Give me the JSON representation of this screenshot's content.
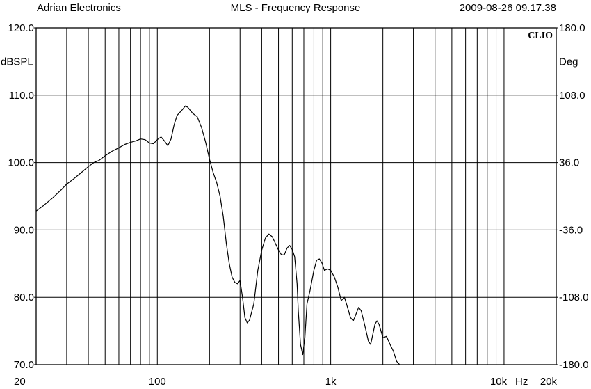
{
  "header": {
    "left": "Adrian Electronics",
    "center": "MLS - Frequency Response",
    "right": "2009-08-26 09.17.38"
  },
  "brand": "CLIO",
  "chart_data": {
    "type": "line",
    "title": "MLS - Frequency Response",
    "xscale": "log",
    "xlim": [
      20,
      20000
    ],
    "ylim": [
      70,
      120
    ],
    "y2lim": [
      -180,
      180
    ],
    "ylabel": "dBSPL",
    "y2label": "Deg",
    "xunit": "Hz",
    "grid": true,
    "xticks": [
      {
        "value": 20,
        "label": "20"
      },
      {
        "value": 100,
        "label": "100"
      },
      {
        "value": 1000,
        "label": "1k"
      },
      {
        "value": 10000,
        "label": "10k"
      },
      {
        "value": 20000,
        "label": "20k"
      }
    ],
    "yticks": [
      {
        "value": 120,
        "label": "120.0"
      },
      {
        "value": 110,
        "label": "110.0"
      },
      {
        "value": 100,
        "label": "100.0"
      },
      {
        "value": 90,
        "label": "90.0"
      },
      {
        "value": 80,
        "label": "80.0"
      },
      {
        "value": 70,
        "label": "70.0"
      }
    ],
    "y2ticks": [
      {
        "value": 180,
        "label": "180.0"
      },
      {
        "value": 108,
        "label": "108.0"
      },
      {
        "value": 36,
        "label": "36.0"
      },
      {
        "value": -36,
        "label": "-36.0"
      },
      {
        "value": -108,
        "label": "-108.0"
      },
      {
        "value": -180,
        "label": "-180.0"
      }
    ],
    "series": [
      {
        "points": [
          [
            20,
            92.8
          ],
          [
            22,
            93.6
          ],
          [
            25,
            94.8
          ],
          [
            28,
            96.0
          ],
          [
            30,
            96.8
          ],
          [
            33,
            97.6
          ],
          [
            36,
            98.4
          ],
          [
            40,
            99.4
          ],
          [
            43,
            100.0
          ],
          [
            46,
            100.3
          ],
          [
            50,
            101.0
          ],
          [
            55,
            101.7
          ],
          [
            60,
            102.2
          ],
          [
            65,
            102.7
          ],
          [
            70,
            103.0
          ],
          [
            75,
            103.2
          ],
          [
            80,
            103.5
          ],
          [
            85,
            103.4
          ],
          [
            90,
            102.9
          ],
          [
            95,
            102.8
          ],
          [
            100,
            103.4
          ],
          [
            105,
            103.8
          ],
          [
            110,
            103.2
          ],
          [
            115,
            102.5
          ],
          [
            120,
            103.5
          ],
          [
            125,
            105.6
          ],
          [
            130,
            107.0
          ],
          [
            140,
            107.9
          ],
          [
            145,
            108.4
          ],
          [
            150,
            108.2
          ],
          [
            160,
            107.3
          ],
          [
            170,
            106.8
          ],
          [
            180,
            105.2
          ],
          [
            190,
            103.0
          ],
          [
            200,
            100.5
          ],
          [
            210,
            98.5
          ],
          [
            220,
            97.0
          ],
          [
            230,
            95.0
          ],
          [
            240,
            92.0
          ],
          [
            250,
            88.0
          ],
          [
            260,
            85.0
          ],
          [
            270,
            83.0
          ],
          [
            280,
            82.2
          ],
          [
            290,
            82.0
          ],
          [
            300,
            82.5
          ],
          [
            310,
            80.0
          ],
          [
            320,
            77.0
          ],
          [
            330,
            76.2
          ],
          [
            340,
            76.6
          ],
          [
            360,
            79.0
          ],
          [
            380,
            84.0
          ],
          [
            400,
            87.0
          ],
          [
            420,
            88.8
          ],
          [
            440,
            89.4
          ],
          [
            460,
            89.0
          ],
          [
            480,
            88.0
          ],
          [
            500,
            87.0
          ],
          [
            520,
            86.3
          ],
          [
            540,
            86.3
          ],
          [
            560,
            87.3
          ],
          [
            580,
            87.7
          ],
          [
            600,
            87.1
          ],
          [
            620,
            86.0
          ],
          [
            640,
            82.0
          ],
          [
            650,
            78.0
          ],
          [
            670,
            73.0
          ],
          [
            690,
            71.5
          ],
          [
            710,
            74.0
          ],
          [
            730,
            79.0
          ],
          [
            760,
            81.0
          ],
          [
            800,
            84.0
          ],
          [
            830,
            85.5
          ],
          [
            860,
            85.7
          ],
          [
            890,
            85.1
          ],
          [
            920,
            84.0
          ],
          [
            960,
            84.2
          ],
          [
            1000,
            84.0
          ],
          [
            1050,
            83.0
          ],
          [
            1100,
            81.5
          ],
          [
            1150,
            79.5
          ],
          [
            1200,
            80.0
          ],
          [
            1250,
            78.5
          ],
          [
            1300,
            77.0
          ],
          [
            1350,
            76.5
          ],
          [
            1400,
            77.5
          ],
          [
            1450,
            78.5
          ],
          [
            1500,
            78.0
          ],
          [
            1550,
            76.5
          ],
          [
            1600,
            75.0
          ],
          [
            1650,
            73.5
          ],
          [
            1700,
            73.0
          ],
          [
            1750,
            74.5
          ],
          [
            1800,
            76.0
          ],
          [
            1850,
            76.5
          ],
          [
            1900,
            76.0
          ],
          [
            1950,
            75.0
          ],
          [
            2000,
            74.0
          ],
          [
            2100,
            74.2
          ],
          [
            2200,
            73.0
          ],
          [
            2300,
            72.0
          ],
          [
            2400,
            70.5
          ],
          [
            2500,
            70.0
          ]
        ]
      }
    ]
  }
}
